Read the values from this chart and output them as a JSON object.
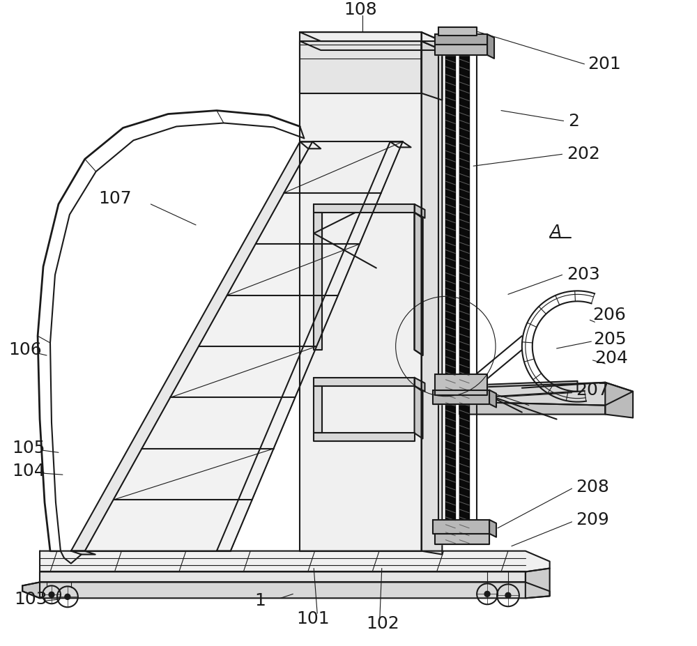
{
  "bg_color": "#ffffff",
  "line_color": "#1a1a1a",
  "figsize": [
    10.0,
    9.27
  ],
  "dpi": 100
}
